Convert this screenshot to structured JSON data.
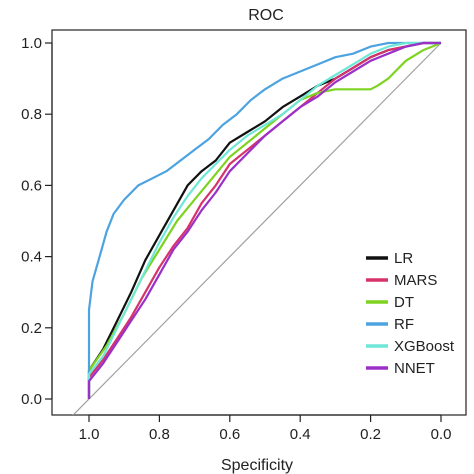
{
  "chart_data": {
    "type": "line",
    "title": "ROC",
    "xlabel": "Specificity",
    "ylabel": "",
    "xlim": [
      1.0,
      0.0
    ],
    "ylim": [
      0.0,
      1.0
    ],
    "x_ticks": [
      "1.0",
      "0.8",
      "0.6",
      "0.4",
      "0.2",
      "0.0"
    ],
    "y_ticks": [
      "0.0",
      "0.2",
      "0.4",
      "0.6",
      "0.8",
      "1.0"
    ],
    "grid": false,
    "legend_position": "bottom-right",
    "reference_line": {
      "x": [
        1.05,
        0.0
      ],
      "y": [
        -0.05,
        1.0
      ],
      "color": "#a0a0a0"
    },
    "series": [
      {
        "name": "LR",
        "color": "#111111",
        "x": [
          1.0,
          1.0,
          0.96,
          0.92,
          0.88,
          0.84,
          0.8,
          0.76,
          0.72,
          0.68,
          0.64,
          0.6,
          0.55,
          0.5,
          0.45,
          0.4,
          0.35,
          0.3,
          0.25,
          0.2,
          0.15,
          0.1,
          0.05,
          0.0
        ],
        "y": [
          0.0,
          0.08,
          0.14,
          0.22,
          0.3,
          0.39,
          0.46,
          0.53,
          0.6,
          0.64,
          0.67,
          0.72,
          0.75,
          0.78,
          0.82,
          0.85,
          0.88,
          0.9,
          0.93,
          0.96,
          0.98,
          0.99,
          1.0,
          1.0
        ]
      },
      {
        "name": "MARS",
        "color": "#d6336c",
        "x": [
          1.0,
          1.0,
          0.96,
          0.92,
          0.88,
          0.84,
          0.8,
          0.76,
          0.72,
          0.68,
          0.64,
          0.6,
          0.55,
          0.5,
          0.45,
          0.4,
          0.35,
          0.3,
          0.25,
          0.2,
          0.15,
          0.1,
          0.05,
          0.0
        ],
        "y": [
          0.0,
          0.06,
          0.11,
          0.17,
          0.23,
          0.3,
          0.37,
          0.43,
          0.48,
          0.55,
          0.6,
          0.66,
          0.7,
          0.74,
          0.78,
          0.82,
          0.86,
          0.9,
          0.93,
          0.96,
          0.98,
          0.99,
          1.0,
          1.0
        ]
      },
      {
        "name": "DT",
        "color": "#7ed321",
        "x": [
          1.0,
          1.0,
          0.95,
          0.9,
          0.85,
          0.8,
          0.75,
          0.7,
          0.65,
          0.6,
          0.55,
          0.5,
          0.45,
          0.4,
          0.35,
          0.3,
          0.25,
          0.2,
          0.18,
          0.15,
          0.1,
          0.05,
          0.0
        ],
        "y": [
          0.0,
          0.08,
          0.15,
          0.24,
          0.34,
          0.42,
          0.5,
          0.56,
          0.62,
          0.68,
          0.72,
          0.76,
          0.8,
          0.84,
          0.86,
          0.87,
          0.87,
          0.87,
          0.88,
          0.9,
          0.95,
          0.98,
          1.0
        ]
      },
      {
        "name": "RF",
        "color": "#4da3e0",
        "x": [
          1.0,
          1.0,
          0.99,
          0.97,
          0.95,
          0.93,
          0.9,
          0.86,
          0.82,
          0.78,
          0.74,
          0.7,
          0.66,
          0.62,
          0.58,
          0.54,
          0.5,
          0.45,
          0.4,
          0.35,
          0.3,
          0.25,
          0.2,
          0.15,
          0.1,
          0.05,
          0.0
        ],
        "y": [
          0.0,
          0.25,
          0.33,
          0.4,
          0.47,
          0.52,
          0.56,
          0.6,
          0.62,
          0.64,
          0.67,
          0.7,
          0.73,
          0.77,
          0.8,
          0.84,
          0.87,
          0.9,
          0.92,
          0.94,
          0.96,
          0.97,
          0.99,
          1.0,
          1.0,
          1.0,
          1.0
        ]
      },
      {
        "name": "XGBoost",
        "color": "#6ee6d8",
        "x": [
          1.0,
          1.0,
          0.96,
          0.92,
          0.88,
          0.84,
          0.8,
          0.76,
          0.72,
          0.68,
          0.64,
          0.6,
          0.55,
          0.5,
          0.45,
          0.4,
          0.35,
          0.3,
          0.25,
          0.2,
          0.15,
          0.1,
          0.05,
          0.0
        ],
        "y": [
          0.0,
          0.07,
          0.12,
          0.2,
          0.28,
          0.36,
          0.44,
          0.51,
          0.57,
          0.62,
          0.66,
          0.7,
          0.74,
          0.77,
          0.8,
          0.84,
          0.88,
          0.91,
          0.94,
          0.97,
          0.99,
          1.0,
          1.0,
          1.0
        ]
      },
      {
        "name": "NNET",
        "color": "#9b30c8",
        "x": [
          1.0,
          1.0,
          0.96,
          0.92,
          0.88,
          0.84,
          0.8,
          0.76,
          0.72,
          0.68,
          0.64,
          0.6,
          0.55,
          0.5,
          0.45,
          0.4,
          0.35,
          0.3,
          0.25,
          0.2,
          0.15,
          0.1,
          0.05,
          0.0
        ],
        "y": [
          0.0,
          0.05,
          0.1,
          0.16,
          0.22,
          0.28,
          0.35,
          0.42,
          0.47,
          0.53,
          0.58,
          0.64,
          0.69,
          0.74,
          0.78,
          0.82,
          0.85,
          0.89,
          0.92,
          0.95,
          0.97,
          0.99,
          1.0,
          1.0
        ]
      }
    ]
  }
}
